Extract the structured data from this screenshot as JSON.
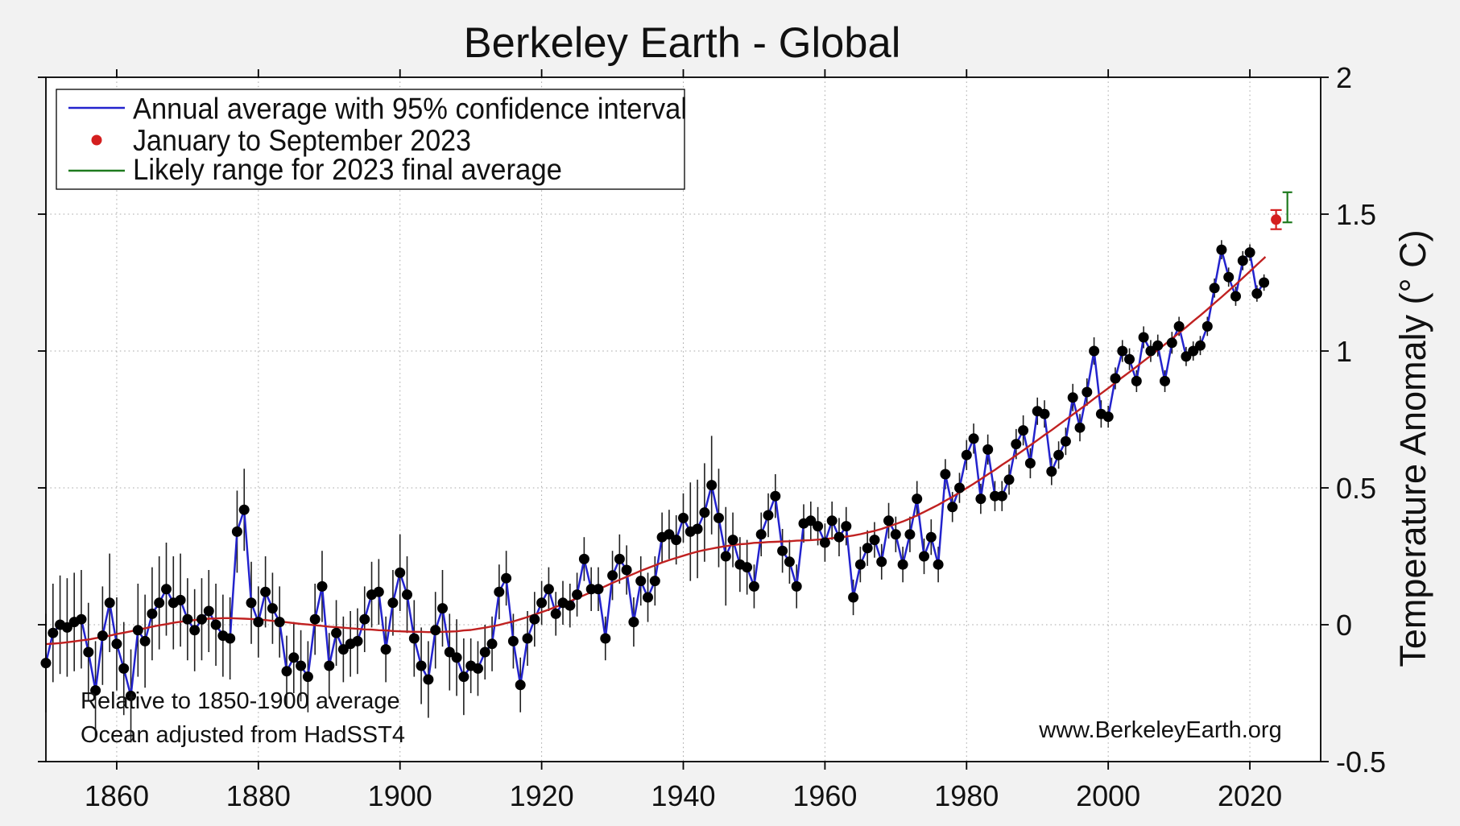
{
  "title": "Berkeley Earth - Global",
  "legend": {
    "items": [
      {
        "label": "Annual average with 95% confidence interval",
        "marker": "line",
        "color": "#2323cd"
      },
      {
        "label": "January to September 2023",
        "marker": "dot",
        "color": "#d41f1f"
      },
      {
        "label": "Likely range for 2023 final average",
        "marker": "line",
        "color": "#1e7a1e"
      }
    ]
  },
  "annotations": {
    "baseline_note": "Relative to 1850-1900 average",
    "ocean_note": "Ocean adjusted from HadSST4",
    "website": "www.BerkeleyEarth.org"
  },
  "chart_data": {
    "type": "line",
    "title": "Berkeley Earth - Global",
    "xlabel": "",
    "ylabel": "Temperature Anomaly (° C)",
    "xlim": [
      1850,
      2030
    ],
    "ylim": [
      -0.5,
      2
    ],
    "x_ticks": [
      1860,
      1880,
      1900,
      1920,
      1940,
      1960,
      1980,
      2000,
      2020
    ],
    "y_ticks": [
      -0.5,
      0,
      0.5,
      1,
      1.5,
      2
    ],
    "y_tick_labels": [
      "-0.5",
      "0",
      "0.5",
      "1",
      "1.5",
      "2"
    ],
    "grid": true,
    "legend_position": "top-left",
    "colors": {
      "annual_line": "#2323cd",
      "smoothed_line": "#c02121",
      "marker": "#000000",
      "error_bar": "#1f1f1f",
      "point_2023": "#d41f1f",
      "range_2023": "#1e7a1e",
      "grid": "#a8a8a8",
      "axis": "#000000",
      "text": "#111111",
      "figure_bg": "#f2f2f2",
      "plot_bg": "#ffffff"
    },
    "series": [
      {
        "name": "annual_average",
        "years": [
          1850,
          1851,
          1852,
          1853,
          1854,
          1855,
          1856,
          1857,
          1858,
          1859,
          1860,
          1861,
          1862,
          1863,
          1864,
          1865,
          1866,
          1867,
          1868,
          1869,
          1870,
          1871,
          1872,
          1873,
          1874,
          1875,
          1876,
          1877,
          1878,
          1879,
          1880,
          1881,
          1882,
          1883,
          1884,
          1885,
          1886,
          1887,
          1888,
          1889,
          1890,
          1891,
          1892,
          1893,
          1894,
          1895,
          1896,
          1897,
          1898,
          1899,
          1900,
          1901,
          1902,
          1903,
          1904,
          1905,
          1906,
          1907,
          1908,
          1909,
          1910,
          1911,
          1912,
          1913,
          1914,
          1915,
          1916,
          1917,
          1918,
          1919,
          1920,
          1921,
          1922,
          1923,
          1924,
          1925,
          1926,
          1927,
          1928,
          1929,
          1930,
          1931,
          1932,
          1933,
          1934,
          1935,
          1936,
          1937,
          1938,
          1939,
          1940,
          1941,
          1942,
          1943,
          1944,
          1945,
          1946,
          1947,
          1948,
          1949,
          1950,
          1951,
          1952,
          1953,
          1954,
          1955,
          1956,
          1957,
          1958,
          1959,
          1960,
          1961,
          1962,
          1963,
          1964,
          1965,
          1966,
          1967,
          1968,
          1969,
          1970,
          1971,
          1972,
          1973,
          1974,
          1975,
          1976,
          1977,
          1978,
          1979,
          1980,
          1981,
          1982,
          1983,
          1984,
          1985,
          1986,
          1987,
          1988,
          1989,
          1990,
          1991,
          1992,
          1993,
          1994,
          1995,
          1996,
          1997,
          1998,
          1999,
          2000,
          2001,
          2002,
          2003,
          2004,
          2005,
          2006,
          2007,
          2008,
          2009,
          2010,
          2011,
          2012,
          2013,
          2014,
          2015,
          2016,
          2017,
          2018,
          2019,
          2020,
          2021,
          2022
        ],
        "values": [
          -0.14,
          -0.03,
          0.0,
          -0.01,
          0.01,
          0.02,
          -0.1,
          -0.24,
          -0.04,
          0.08,
          -0.07,
          -0.16,
          -0.26,
          -0.02,
          -0.06,
          0.04,
          0.08,
          0.13,
          0.08,
          0.09,
          0.02,
          -0.02,
          0.02,
          0.05,
          0.0,
          -0.04,
          -0.05,
          0.34,
          0.42,
          0.08,
          0.01,
          0.12,
          0.06,
          0.01,
          -0.17,
          -0.12,
          -0.15,
          -0.19,
          0.02,
          0.14,
          -0.15,
          -0.03,
          -0.09,
          -0.07,
          -0.06,
          0.02,
          0.11,
          0.12,
          -0.09,
          0.08,
          0.19,
          0.11,
          -0.05,
          -0.15,
          -0.2,
          -0.02,
          0.06,
          -0.1,
          -0.12,
          -0.19,
          -0.15,
          -0.16,
          -0.1,
          -0.07,
          0.12,
          0.17,
          -0.06,
          -0.22,
          -0.05,
          0.02,
          0.08,
          0.13,
          0.04,
          0.08,
          0.07,
          0.11,
          0.24,
          0.13,
          0.13,
          -0.05,
          0.18,
          0.24,
          0.2,
          0.01,
          0.16,
          0.1,
          0.16,
          0.32,
          0.33,
          0.31,
          0.39,
          0.34,
          0.35,
          0.41,
          0.51,
          0.39,
          0.25,
          0.31,
          0.22,
          0.21,
          0.14,
          0.33,
          0.4,
          0.47,
          0.27,
          0.23,
          0.14,
          0.37,
          0.38,
          0.36,
          0.3,
          0.38,
          0.32,
          0.36,
          0.1,
          0.22,
          0.28,
          0.31,
          0.23,
          0.38,
          0.33,
          0.22,
          0.33,
          0.46,
          0.25,
          0.32,
          0.22,
          0.55,
          0.43,
          0.5,
          0.62,
          0.68,
          0.46,
          0.64,
          0.47,
          0.47,
          0.53,
          0.66,
          0.71,
          0.59,
          0.78,
          0.77,
          0.56,
          0.62,
          0.67,
          0.83,
          0.72,
          0.85,
          1.0,
          0.77,
          0.76,
          0.9,
          1.0,
          0.97,
          0.89,
          1.05,
          1.0,
          1.02,
          0.89,
          1.03,
          1.09,
          0.98,
          1.0,
          1.02,
          1.09,
          1.23,
          1.37,
          1.27,
          1.2,
          1.33,
          1.36,
          1.21,
          1.25
        ],
        "ci95": [
          0.18,
          0.18,
          0.18,
          0.18,
          0.18,
          0.18,
          0.18,
          0.18,
          0.18,
          0.18,
          0.17,
          0.17,
          0.17,
          0.17,
          0.17,
          0.17,
          0.17,
          0.17,
          0.17,
          0.17,
          0.15,
          0.15,
          0.15,
          0.15,
          0.15,
          0.15,
          0.15,
          0.15,
          0.15,
          0.15,
          0.13,
          0.13,
          0.13,
          0.13,
          0.13,
          0.13,
          0.13,
          0.13,
          0.13,
          0.13,
          0.12,
          0.12,
          0.12,
          0.12,
          0.12,
          0.12,
          0.12,
          0.12,
          0.12,
          0.12,
          0.14,
          0.14,
          0.14,
          0.14,
          0.14,
          0.14,
          0.14,
          0.14,
          0.14,
          0.14,
          0.1,
          0.1,
          0.1,
          0.1,
          0.1,
          0.1,
          0.1,
          0.1,
          0.1,
          0.1,
          0.08,
          0.08,
          0.08,
          0.08,
          0.08,
          0.08,
          0.08,
          0.08,
          0.08,
          0.08,
          0.09,
          0.09,
          0.09,
          0.09,
          0.09,
          0.09,
          0.09,
          0.09,
          0.09,
          0.09,
          0.09,
          0.18,
          0.18,
          0.18,
          0.18,
          0.18,
          0.18,
          0.1,
          0.1,
          0.1,
          0.08,
          0.08,
          0.08,
          0.08,
          0.08,
          0.08,
          0.08,
          0.07,
          0.07,
          0.07,
          0.07,
          0.07,
          0.07,
          0.07,
          0.065,
          0.065,
          0.065,
          0.065,
          0.065,
          0.065,
          0.065,
          0.065,
          0.065,
          0.065,
          0.065,
          0.065,
          0.065,
          0.055,
          0.055,
          0.055,
          0.055,
          0.055,
          0.055,
          0.055,
          0.055,
          0.055,
          0.055,
          0.055,
          0.055,
          0.055,
          0.05,
          0.05,
          0.05,
          0.05,
          0.05,
          0.05,
          0.05,
          0.05,
          0.05,
          0.05,
          0.04,
          0.04,
          0.04,
          0.04,
          0.04,
          0.04,
          0.04,
          0.04,
          0.04,
          0.04,
          0.035,
          0.035,
          0.035,
          0.035,
          0.035,
          0.035,
          0.035,
          0.035,
          0.035,
          0.035,
          0.03,
          0.03,
          0.03
        ]
      },
      {
        "name": "smoothed_trend",
        "x": [
          1850,
          1851,
          1852,
          1853,
          1854,
          1855,
          1856,
          1857,
          1858,
          1859,
          1860,
          1861,
          1862,
          1863,
          1864,
          1865,
          1866,
          1867,
          1868,
          1869,
          1870,
          1871,
          1872,
          1873,
          1874,
          1875,
          1876,
          1877,
          1878,
          1879,
          1880,
          1881,
          1882,
          1883,
          1884,
          1885,
          1886,
          1887,
          1888,
          1889,
          1890,
          1891,
          1892,
          1893,
          1894,
          1895,
          1896,
          1897,
          1898,
          1899,
          1900,
          1901,
          1902,
          1903,
          1904,
          1905,
          1906,
          1907,
          1908,
          1909,
          1910,
          1911,
          1912,
          1913,
          1914,
          1915,
          1916,
          1917,
          1918,
          1919,
          1920,
          1921,
          1922,
          1923,
          1924,
          1925,
          1926,
          1927,
          1928,
          1929,
          1930,
          1931,
          1932,
          1933,
          1934,
          1935,
          1936,
          1937,
          1938,
          1939,
          1940,
          1941,
          1942,
          1943,
          1944,
          1945,
          1946,
          1947,
          1948,
          1949,
          1950,
          1951,
          1952,
          1953,
          1954,
          1955,
          1956,
          1957,
          1958,
          1959,
          1960,
          1961,
          1962,
          1963,
          1964,
          1965,
          1966,
          1967,
          1968,
          1969,
          1970,
          1971,
          1972,
          1973,
          1974,
          1975,
          1976,
          1977,
          1978,
          1979,
          1980,
          1981,
          1982,
          1983,
          1984,
          1985,
          1986,
          1987,
          1988,
          1989,
          1990,
          1991,
          1992,
          1993,
          1994,
          1995,
          1996,
          1997,
          1998,
          1999,
          2000,
          2001,
          2002,
          2003,
          2004,
          2005,
          2006,
          2007,
          2008,
          2009,
          2010,
          2011,
          2012,
          2013,
          2014,
          2015,
          2016,
          2017,
          2018,
          2019,
          2020,
          2021,
          2022,
          2022.2
        ],
        "y": [
          -0.071,
          -0.069,
          -0.067,
          -0.064,
          -0.061,
          -0.057,
          -0.054,
          -0.049,
          -0.045,
          -0.04,
          -0.034,
          -0.029,
          -0.024,
          -0.018,
          -0.013,
          -0.007,
          -0.002,
          0.002,
          0.007,
          0.011,
          0.014,
          0.017,
          0.02,
          0.022,
          0.023,
          0.024,
          0.024,
          0.023,
          0.022,
          0.021,
          0.019,
          0.017,
          0.014,
          0.012,
          0.009,
          0.006,
          0.003,
          0.001,
          -0.002,
          -0.004,
          -0.007,
          -0.009,
          -0.011,
          -0.013,
          -0.015,
          -0.017,
          -0.018,
          -0.02,
          -0.021,
          -0.023,
          -0.024,
          -0.025,
          -0.026,
          -0.026,
          -0.027,
          -0.027,
          -0.026,
          -0.025,
          -0.024,
          -0.021,
          -0.019,
          -0.015,
          -0.011,
          -0.006,
          -0.001,
          0.006,
          0.012,
          0.02,
          0.028,
          0.037,
          0.046,
          0.055,
          0.065,
          0.075,
          0.086,
          0.097,
          0.108,
          0.119,
          0.13,
          0.141,
          0.153,
          0.164,
          0.175,
          0.186,
          0.197,
          0.207,
          0.217,
          0.227,
          0.236,
          0.244,
          0.252,
          0.26,
          0.267,
          0.273,
          0.278,
          0.283,
          0.287,
          0.291,
          0.294,
          0.296,
          0.299,
          0.3,
          0.302,
          0.303,
          0.304,
          0.305,
          0.307,
          0.308,
          0.309,
          0.311,
          0.313,
          0.316,
          0.319,
          0.322,
          0.326,
          0.331,
          0.337,
          0.343,
          0.35,
          0.359,
          0.368,
          0.377,
          0.388,
          0.399,
          0.412,
          0.425,
          0.438,
          0.453,
          0.467,
          0.483,
          0.499,
          0.515,
          0.532,
          0.549,
          0.566,
          0.584,
          0.601,
          0.619,
          0.637,
          0.656,
          0.674,
          0.693,
          0.711,
          0.73,
          0.749,
          0.768,
          0.787,
          0.806,
          0.826,
          0.845,
          0.864,
          0.884,
          0.904,
          0.923,
          0.943,
          0.963,
          0.983,
          1.004,
          1.024,
          1.045,
          1.066,
          1.087,
          1.109,
          1.13,
          1.152,
          1.175,
          1.197,
          1.22,
          1.243,
          1.267,
          1.291,
          1.315,
          1.339,
          1.344
        ]
      },
      {
        "name": "jan_to_september_2023",
        "x": 2023.7,
        "value": 1.48,
        "ci95": 0.035
      },
      {
        "name": "likely_range_2023",
        "x": 2025.3,
        "low": 1.47,
        "high": 1.58
      }
    ]
  }
}
